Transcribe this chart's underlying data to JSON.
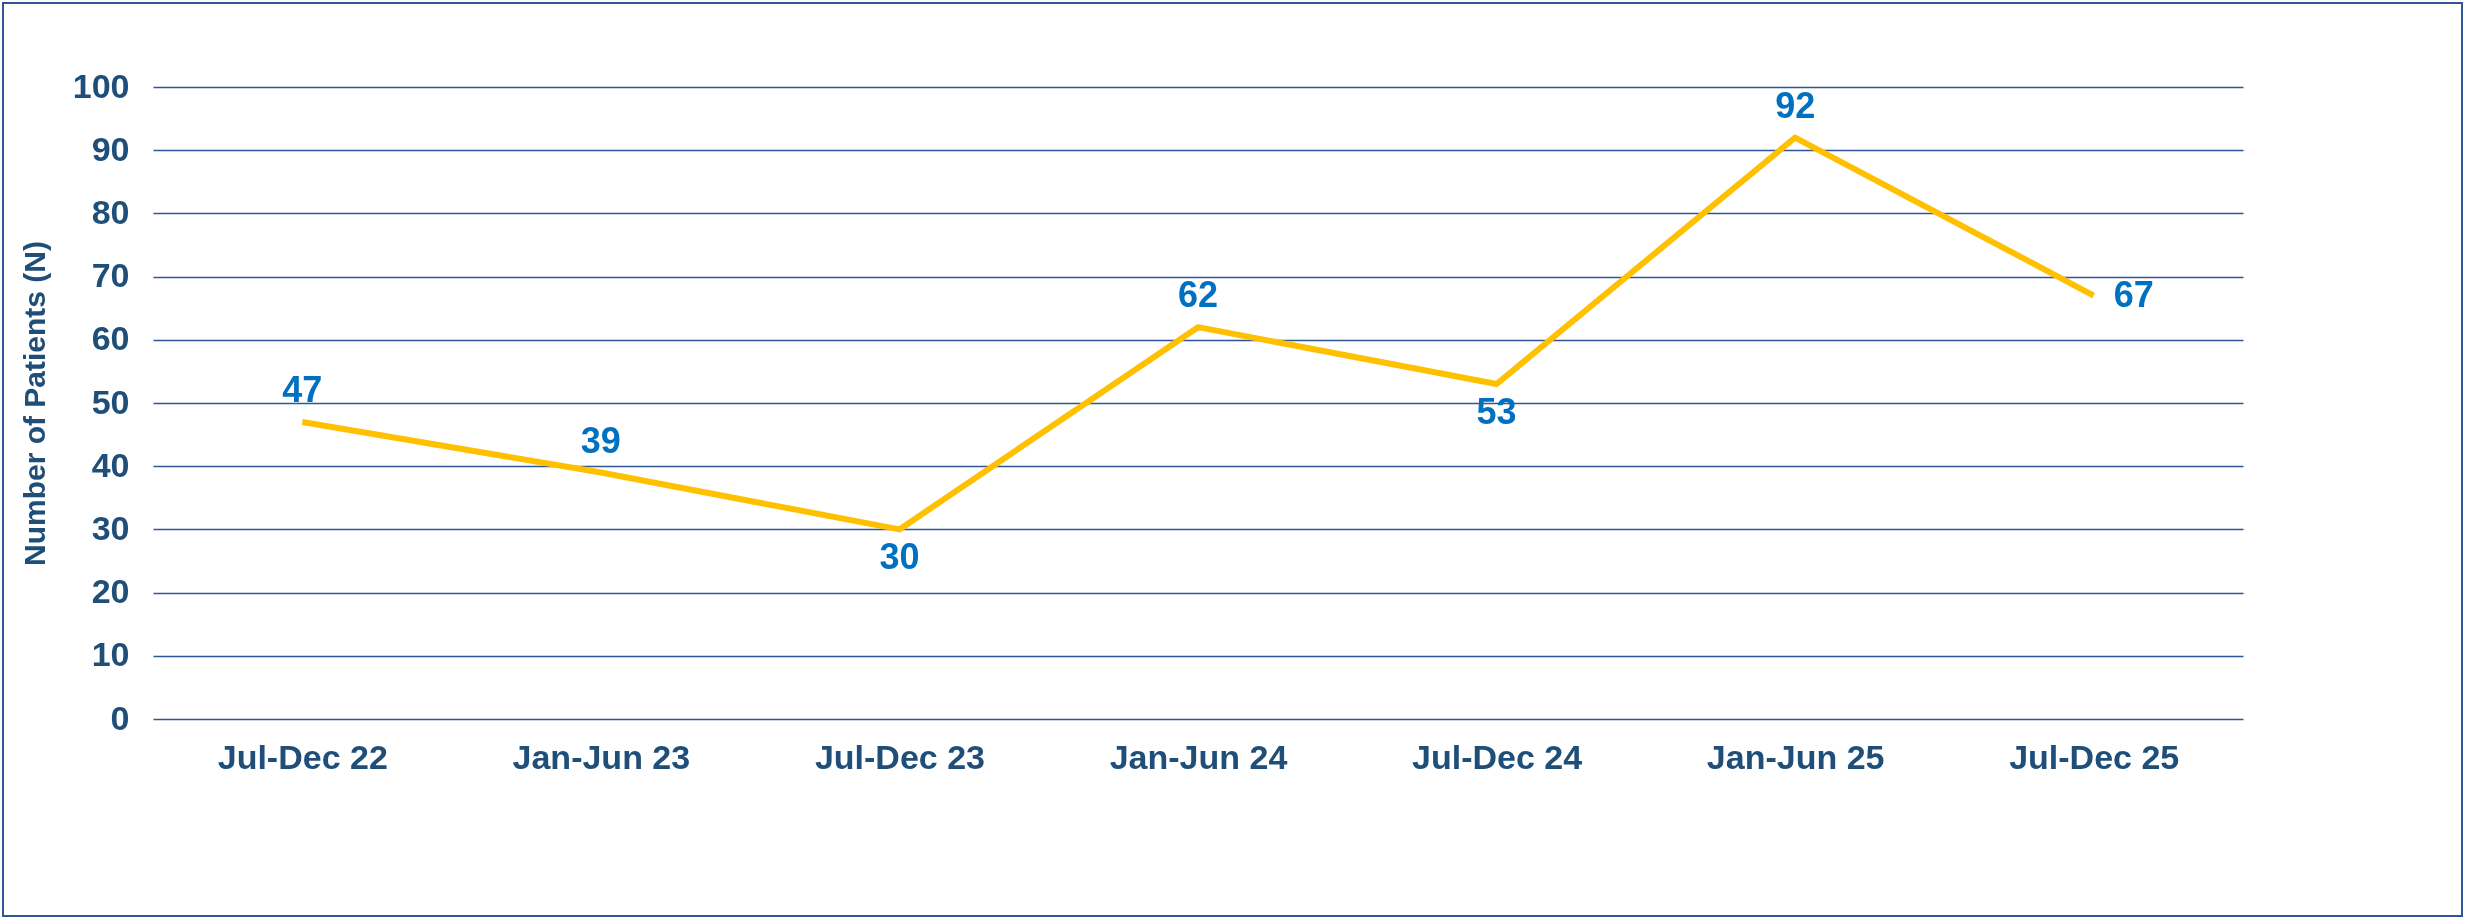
{
  "chart_data": {
    "type": "line",
    "ylabel": "Number of Patients (N)",
    "categories": [
      "Jul-Dec 22",
      "Jan-Jun 23",
      "Jul-Dec 23",
      "Jan-Jun 24",
      "Jul-Dec 24",
      "Jan-Jun 25",
      "Jul-Dec 25"
    ],
    "series": [
      {
        "color": "#ffc000",
        "values": [
          47,
          39,
          30,
          62,
          53,
          92,
          67
        ]
      }
    ],
    "ylim": [
      0,
      100
    ],
    "yticks": [
      0,
      10,
      20,
      30,
      40,
      50,
      60,
      70,
      80,
      90,
      100
    ],
    "grid": "y",
    "data_labels": true,
    "marker": "none",
    "line_style": "solid"
  }
}
